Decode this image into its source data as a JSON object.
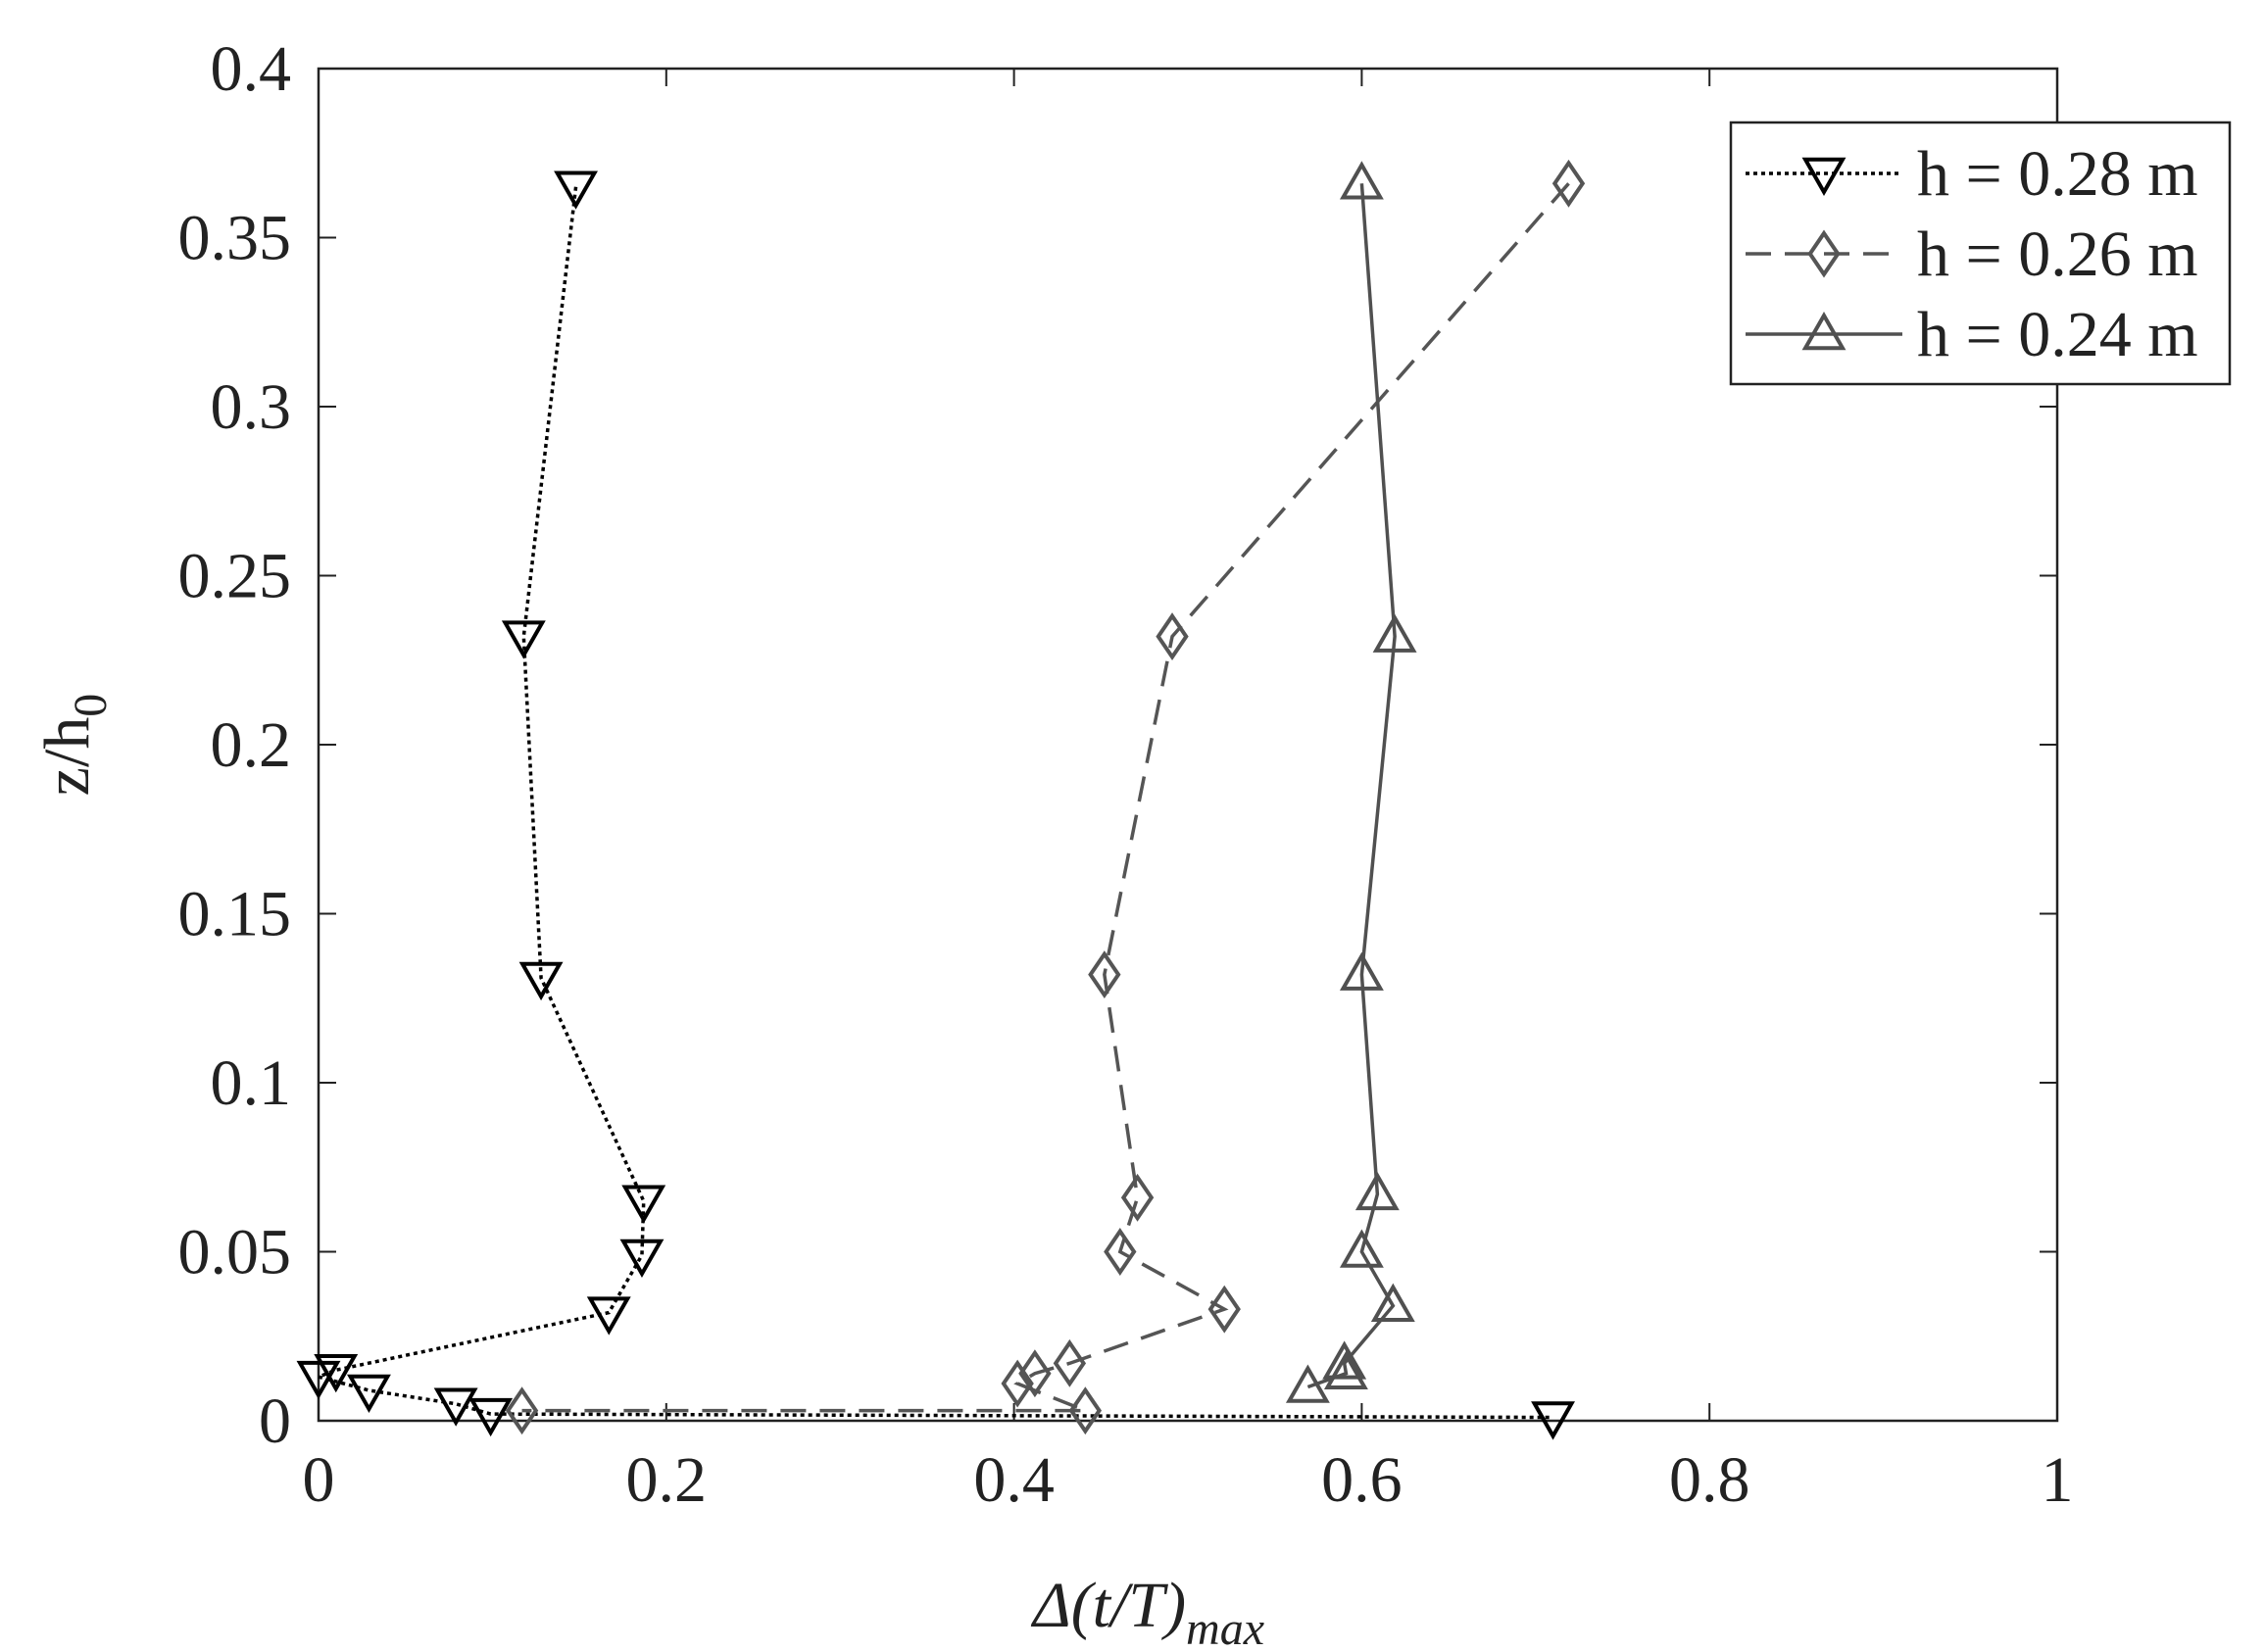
{
  "chart_data": {
    "type": "line",
    "x_label": {
      "main": "Δ(t/T)",
      "sub": "max"
    },
    "y_label": {
      "main": "z/h",
      "sub": "0"
    },
    "xlim": [
      0,
      1
    ],
    "xticks": [
      0,
      0.2,
      0.4,
      0.6,
      0.8,
      1
    ],
    "ylim": [
      0,
      0.4
    ],
    "yticks": [
      0,
      0.05,
      0.1,
      0.15,
      0.2,
      0.25,
      0.3,
      0.35,
      0.4
    ],
    "legend": "northeast",
    "series": [
      {
        "name": "h = 0.28 m",
        "color": "#000000",
        "line": "dotted",
        "marker": "triangle-down",
        "x": [
          0.148,
          0.118,
          0.128,
          0.187,
          0.186,
          0.167,
          0.01,
          0.0,
          0.029,
          0.079,
          0.099,
          0.71
        ],
        "values": [
          0.365,
          0.232,
          0.131,
          0.065,
          0.049,
          0.032,
          0.015,
          0.013,
          0.009,
          0.005,
          0.002,
          0.001
        ]
      },
      {
        "name": "h = 0.26 m",
        "color": "#555555",
        "line": "dashed",
        "marker": "diamond",
        "x": [
          0.719,
          0.491,
          0.452,
          0.471,
          0.461,
          0.521,
          0.432,
          0.412,
          0.402,
          0.441,
          0.117
        ],
        "values": [
          0.366,
          0.232,
          0.132,
          0.066,
          0.05,
          0.033,
          0.017,
          0.014,
          0.011,
          0.003,
          0.003
        ]
      },
      {
        "name": "h = 0.24 m",
        "color": "#505050",
        "line": "solid",
        "marker": "triangle-up",
        "x": [
          0.6,
          0.619,
          0.6,
          0.609,
          0.6,
          0.618,
          0.59,
          0.591,
          0.569
        ],
        "values": [
          0.366,
          0.232,
          0.132,
          0.067,
          0.05,
          0.034,
          0.017,
          0.014,
          0.01
        ]
      }
    ]
  }
}
